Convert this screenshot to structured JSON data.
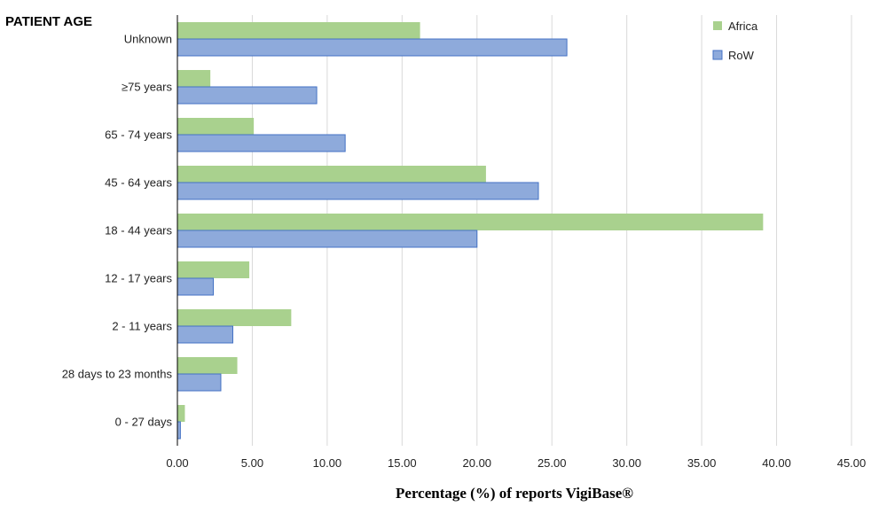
{
  "chart_data": {
    "type": "bar",
    "orientation": "horizontal",
    "title": "PATIENT AGE",
    "xlabel": "Percentage (%) of reports VigiBase®",
    "ylabel": "",
    "categories": [
      "Unknown",
      "≥75 years",
      "65 - 74 years",
      "45 - 64 years",
      "18 - 44 years",
      "12 - 17 years",
      "2 - 11 years",
      "28 days to 23 months",
      "0 - 27 days"
    ],
    "series": [
      {
        "name": "Africa",
        "color": "#a9d18e",
        "values": [
          16.2,
          2.2,
          5.1,
          20.6,
          39.1,
          4.8,
          7.6,
          4.0,
          0.5
        ]
      },
      {
        "name": "RoW",
        "color": "#8eaadb",
        "values": [
          26.0,
          9.3,
          11.2,
          24.1,
          20.0,
          2.4,
          3.7,
          2.9,
          0.2
        ]
      }
    ],
    "xlim": [
      0,
      45
    ],
    "xticks": [
      "0.00",
      "5.00",
      "10.00",
      "15.00",
      "20.00",
      "25.00",
      "30.00",
      "35.00",
      "40.00",
      "45.00"
    ],
    "grid": true,
    "legend_position": "top-right"
  }
}
